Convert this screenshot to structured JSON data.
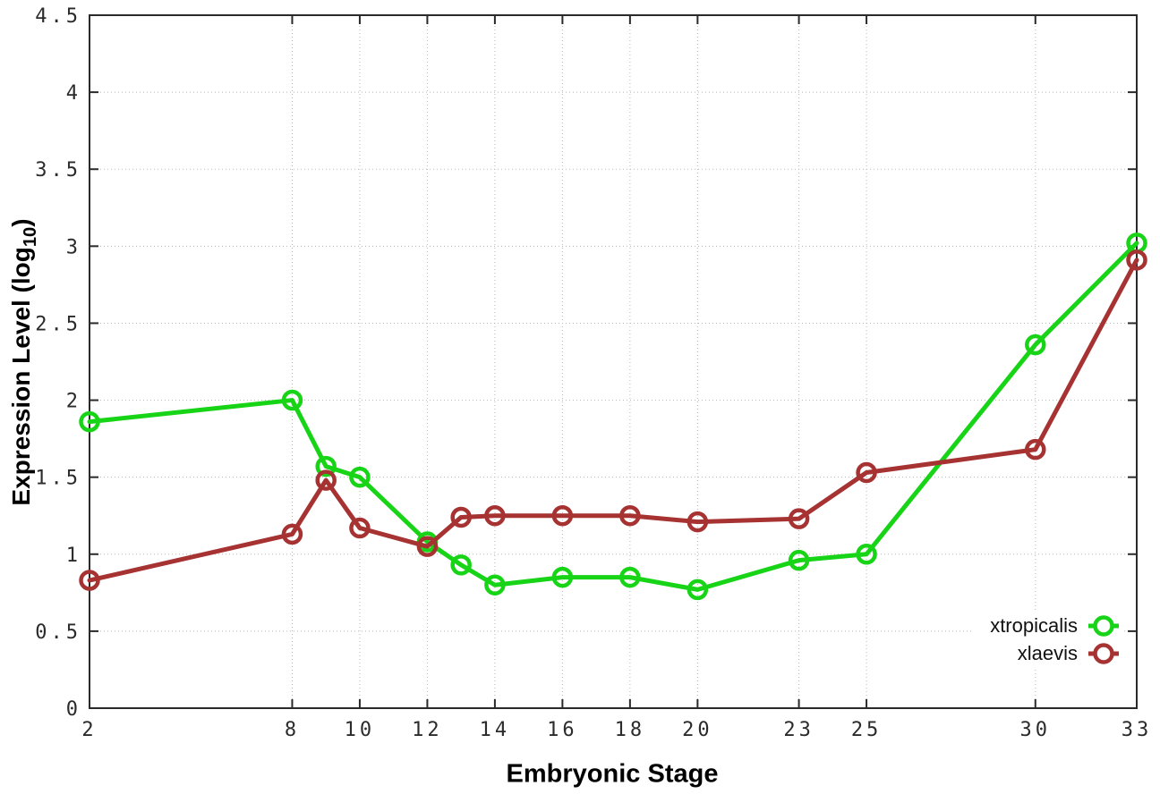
{
  "figure": {
    "background": "#ffffff",
    "axis_color": "#2a2a2a",
    "grid_color": "#b8b8b8",
    "tick_label_color": "#2b2b2b"
  },
  "chart_data": {
    "type": "line",
    "title": "",
    "xlabel": "Embryonic Stage",
    "ylabel": "Expression Level (log10)",
    "ylabel_parts": {
      "main": "Expression Level (log",
      "sub": "10",
      "close": ")"
    },
    "xlim": [
      2,
      33
    ],
    "ylim": [
      0,
      4.5
    ],
    "x_ticks": [
      2,
      8,
      10,
      12,
      14,
      16,
      18,
      20,
      23,
      25,
      30,
      33
    ],
    "y_ticks": [
      0,
      0.5,
      1,
      1.5,
      2,
      2.5,
      3,
      3.5,
      4,
      4.5
    ],
    "y_tick_labels": [
      "0",
      "0.5",
      "1",
      "1.5",
      "2",
      "2.5",
      "3",
      "3.5",
      "4",
      "4.5"
    ],
    "grid": true,
    "legend_position": "inside-bottom-right",
    "x": [
      2,
      8,
      9,
      10,
      12,
      13,
      14,
      16,
      18,
      20,
      23,
      25,
      30,
      33
    ],
    "series": [
      {
        "name": "xtropicalis",
        "color": "#17d417",
        "values": [
          1.86,
          2.0,
          1.57,
          1.5,
          1.08,
          0.93,
          0.8,
          0.85,
          0.85,
          0.77,
          0.96,
          1.0,
          2.36,
          3.02
        ]
      },
      {
        "name": "xlaevis",
        "color": "#a63232",
        "values": [
          0.83,
          1.13,
          1.48,
          1.17,
          1.05,
          1.24,
          1.25,
          1.25,
          1.25,
          1.21,
          1.23,
          1.53,
          1.68,
          2.91
        ]
      }
    ]
  }
}
